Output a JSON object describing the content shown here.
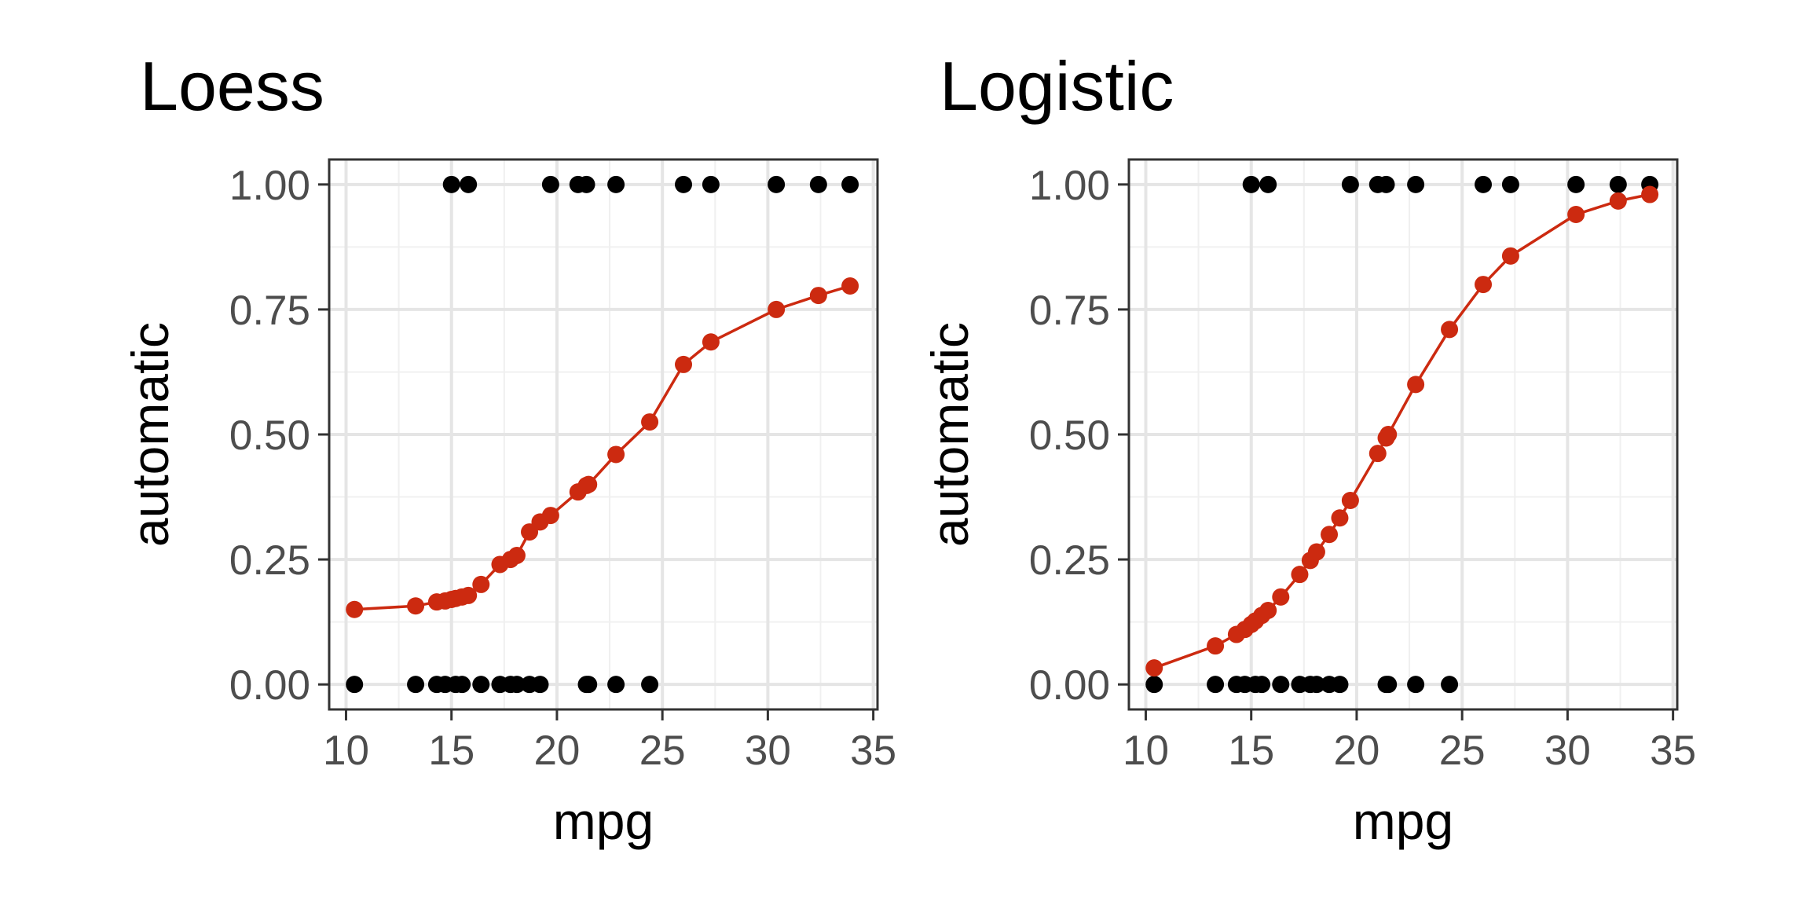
{
  "colors": {
    "fit": "#cc2a10",
    "obs": "#000000",
    "grid_major": "#e5e5e5",
    "grid_minor": "#f0f0f0",
    "panel_border": "#333333"
  },
  "chart_data": [
    {
      "type": "scatter",
      "title": "Loess",
      "xlabel": "mpg",
      "ylabel": "automatic",
      "xlim": [
        9.2,
        35.2
      ],
      "ylim": [
        -0.05,
        1.05
      ],
      "xticks": [
        10,
        15,
        20,
        25,
        30,
        35
      ],
      "xtick_labels": [
        "10",
        "15",
        "20",
        "25",
        "30",
        "35"
      ],
      "yticks": [
        0,
        0.25,
        0.5,
        0.75,
        1.0
      ],
      "ytick_labels": [
        "0.00",
        "0.25",
        "0.50",
        "0.75",
        "1.00"
      ],
      "grid": true,
      "series": [
        {
          "kind": "observed",
          "x": [
            10.4,
            13.3,
            14.3,
            14.7,
            15.2,
            15.5,
            16.4,
            17.3,
            17.8,
            18.1,
            18.7,
            19.2,
            21.4,
            21.5,
            22.8,
            24.4,
            15.0,
            15.8,
            19.7,
            21.0,
            21.4,
            22.8,
            26.0,
            27.3,
            30.4,
            32.4,
            33.9
          ],
          "y": [
            0,
            0,
            0,
            0,
            0,
            0,
            0,
            0,
            0,
            0,
            0,
            0,
            0,
            0,
            0,
            0,
            1,
            1,
            1,
            1,
            1,
            1,
            1,
            1,
            1,
            1,
            1
          ]
        },
        {
          "kind": "fitted",
          "x": [
            10.4,
            13.3,
            14.3,
            14.7,
            15.0,
            15.2,
            15.5,
            15.8,
            16.4,
            17.3,
            17.8,
            18.1,
            18.7,
            19.2,
            19.7,
            21.0,
            21.4,
            21.5,
            22.8,
            24.4,
            26.0,
            27.3,
            30.4,
            32.4,
            33.9
          ],
          "y": [
            0.15,
            0.157,
            0.165,
            0.167,
            0.17,
            0.172,
            0.175,
            0.178,
            0.2,
            0.24,
            0.25,
            0.258,
            0.305,
            0.325,
            0.338,
            0.385,
            0.398,
            0.4,
            0.46,
            0.525,
            0.64,
            0.685,
            0.75,
            0.778,
            0.797
          ]
        }
      ]
    },
    {
      "type": "scatter",
      "title": "Logistic",
      "xlabel": "mpg",
      "ylabel": "automatic",
      "xlim": [
        9.2,
        35.2
      ],
      "ylim": [
        -0.05,
        1.05
      ],
      "xticks": [
        10,
        15,
        20,
        25,
        30,
        35
      ],
      "xtick_labels": [
        "10",
        "15",
        "20",
        "25",
        "30",
        "35"
      ],
      "yticks": [
        0,
        0.25,
        0.5,
        0.75,
        1.0
      ],
      "ytick_labels": [
        "0.00",
        "0.25",
        "0.50",
        "0.75",
        "1.00"
      ],
      "grid": true,
      "series": [
        {
          "kind": "observed",
          "x": [
            10.4,
            13.3,
            14.3,
            14.7,
            15.2,
            15.5,
            16.4,
            17.3,
            17.8,
            18.1,
            18.7,
            19.2,
            21.4,
            21.5,
            22.8,
            24.4,
            15.0,
            15.8,
            19.7,
            21.0,
            21.4,
            22.8,
            26.0,
            27.3,
            30.4,
            32.4,
            33.9
          ],
          "y": [
            0,
            0,
            0,
            0,
            0,
            0,
            0,
            0,
            0,
            0,
            0,
            0,
            0,
            0,
            0,
            0,
            1,
            1,
            1,
            1,
            1,
            1,
            1,
            1,
            1,
            1,
            1
          ]
        },
        {
          "kind": "fitted",
          "x": [
            10.4,
            13.3,
            14.3,
            14.7,
            15.0,
            15.2,
            15.5,
            15.8,
            16.4,
            17.3,
            17.8,
            18.1,
            18.7,
            19.2,
            19.7,
            21.0,
            21.4,
            21.5,
            22.8,
            24.4,
            26.0,
            27.3,
            30.4,
            32.4,
            33.9
          ],
          "y": [
            0.033,
            0.077,
            0.1,
            0.11,
            0.12,
            0.127,
            0.138,
            0.148,
            0.175,
            0.22,
            0.248,
            0.265,
            0.3,
            0.333,
            0.368,
            0.462,
            0.493,
            0.5,
            0.6,
            0.71,
            0.8,
            0.857,
            0.94,
            0.967,
            0.98
          ]
        }
      ]
    }
  ]
}
